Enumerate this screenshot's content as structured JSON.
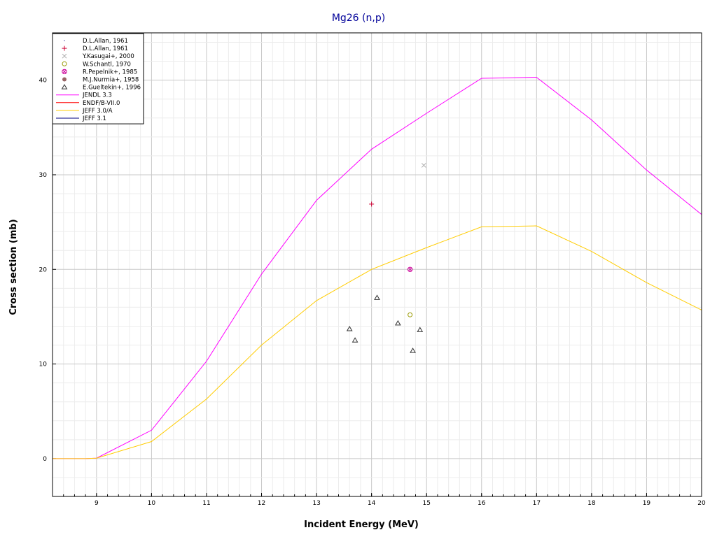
{
  "chart_data": {
    "type": "line",
    "title": "Mg26 (n,p)",
    "xlabel": "Incident Energy (MeV)",
    "ylabel": "Cross section (mb)",
    "xlim": [
      8.2,
      20
    ],
    "ylim": [
      -4,
      45
    ],
    "grid": true,
    "legend_position": "top-left",
    "x_ticks": [
      9,
      10,
      11,
      12,
      13,
      14,
      15,
      16,
      17,
      18,
      19,
      20
    ],
    "y_ticks": [
      0,
      10,
      20,
      30,
      40
    ],
    "series": [
      {
        "name": "JENDL 3.3",
        "kind": "line",
        "color": "#ff00ff",
        "x": [
          8.2,
          8.8,
          9.0,
          10.0,
          11.0,
          12.0,
          13.0,
          14.0,
          15.0,
          16.0,
          17.0,
          18.0,
          19.0,
          20.0
        ],
        "y": [
          0,
          0,
          0.05,
          3.0,
          10.3,
          19.5,
          27.3,
          32.7,
          36.5,
          40.2,
          40.3,
          35.8,
          30.5,
          25.8
        ]
      },
      {
        "name": "ENDF/B-VII.0",
        "kind": "line",
        "color": "#ff0000",
        "x": [],
        "y": []
      },
      {
        "name": "JEFF 3.0/A",
        "kind": "line",
        "color": "#ffcc00",
        "x": [
          8.2,
          8.8,
          9.0,
          10.0,
          11.0,
          12.0,
          13.0,
          14.0,
          15.0,
          16.0,
          17.0,
          18.0,
          19.0,
          20.0
        ],
        "y": [
          0,
          0,
          0.05,
          1.8,
          6.3,
          12.0,
          16.7,
          20.0,
          22.3,
          24.5,
          24.6,
          21.9,
          18.6,
          15.7
        ]
      },
      {
        "name": "JEFF 3.1",
        "kind": "line",
        "color": "#000080",
        "x": [],
        "y": []
      },
      {
        "name": "D.L.Allan, 1961",
        "kind": "marker",
        "marker": "dot",
        "color": "#9999cc",
        "x": [],
        "y": []
      },
      {
        "name": "D.L.Allan, 1961",
        "kind": "marker",
        "marker": "plus",
        "color": "#cc0033",
        "x": [
          14.0
        ],
        "y": [
          26.9
        ]
      },
      {
        "name": "Y.Kasugai+, 2000",
        "kind": "marker",
        "marker": "x",
        "color": "#aaaaaa",
        "x": [
          14.95
        ],
        "y": [
          31.0
        ]
      },
      {
        "name": "W.Schantl, 1970",
        "kind": "marker",
        "marker": "circle",
        "color": "#999900",
        "x": [
          14.7
        ],
        "y": [
          15.2
        ]
      },
      {
        "name": "R.Pepelnik+, 1985",
        "kind": "marker",
        "marker": "circle-x",
        "color": "#cc0099",
        "x": [
          14.7
        ],
        "y": [
          20.0
        ]
      },
      {
        "name": "M.J.Nurmia+, 1958",
        "kind": "marker",
        "marker": "filled-circle",
        "color": "#996666",
        "x": [],
        "y": []
      },
      {
        "name": "E.Gueltekin+, 1996",
        "kind": "marker",
        "marker": "triangle",
        "color": "#333333",
        "x": [
          13.6,
          13.7,
          14.1,
          14.48,
          14.75,
          14.88
        ],
        "y": [
          13.7,
          12.5,
          17.0,
          14.3,
          11.4,
          13.6
        ]
      }
    ]
  }
}
